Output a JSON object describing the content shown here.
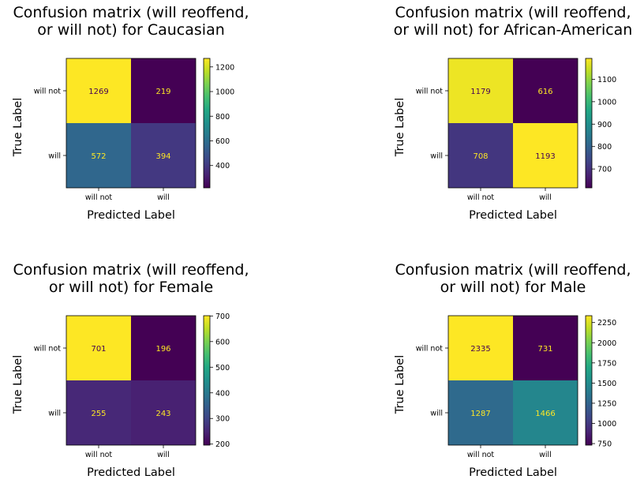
{
  "chart_data": [
    {
      "type": "heatmap",
      "title": "Confusion matrix (will reoffend,\nor will not) for Caucasian",
      "xlabel": "Predicted Label",
      "ylabel": "True Label",
      "x_categories": [
        "will not",
        "will"
      ],
      "y_categories": [
        "will not",
        "will"
      ],
      "values": [
        [
          1269,
          219
        ],
        [
          572,
          394
        ]
      ],
      "colorbar": {
        "ticks": [
          1200,
          1000,
          800,
          600,
          400
        ],
        "vmin": 219,
        "vmax": 1269,
        "colormap": "viridis"
      }
    },
    {
      "type": "heatmap",
      "title": "Confusion matrix (will reoffend,\nor will not) for African-American",
      "xlabel": "Predicted Label",
      "ylabel": "True Label",
      "x_categories": [
        "will not",
        "will"
      ],
      "y_categories": [
        "will not",
        "will"
      ],
      "values": [
        [
          1179,
          616
        ],
        [
          708,
          1193
        ]
      ],
      "colorbar": {
        "ticks": [
          1100,
          1000,
          900,
          800,
          700
        ],
        "vmin": 616,
        "vmax": 1193,
        "colormap": "viridis"
      }
    },
    {
      "type": "heatmap",
      "title": "Confusion matrix (will reoffend,\nor will not) for Female",
      "xlabel": "Predicted Label",
      "ylabel": "True Label",
      "x_categories": [
        "will not",
        "will"
      ],
      "y_categories": [
        "will not",
        "will"
      ],
      "values": [
        [
          701,
          196
        ],
        [
          255,
          243
        ]
      ],
      "colorbar": {
        "ticks": [
          700,
          600,
          500,
          400,
          300,
          200
        ],
        "vmin": 196,
        "vmax": 701,
        "colormap": "viridis"
      }
    },
    {
      "type": "heatmap",
      "title": "Confusion matrix (will reoffend,\nor will not) for Male",
      "xlabel": "Predicted Label",
      "ylabel": "True Label",
      "x_categories": [
        "will not",
        "will"
      ],
      "y_categories": [
        "will not",
        "will"
      ],
      "values": [
        [
          2335,
          731
        ],
        [
          1287,
          1466
        ]
      ],
      "colorbar": {
        "ticks": [
          2250,
          2000,
          1750,
          1500,
          1250,
          1000,
          750
        ],
        "vmin": 731,
        "vmax": 2335,
        "colormap": "viridis"
      }
    }
  ]
}
